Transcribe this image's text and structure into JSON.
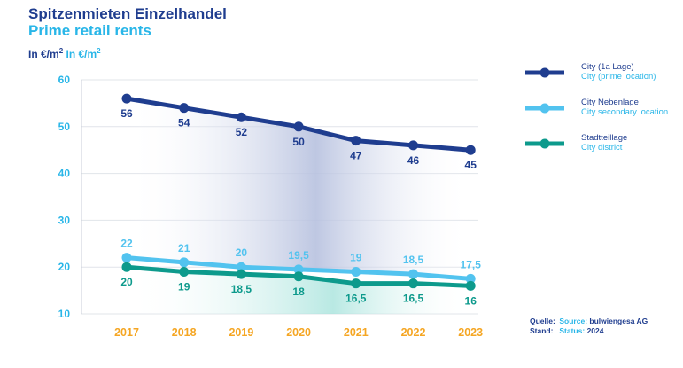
{
  "header": {
    "title_de": "Spitzenmieten Einzelhandel",
    "title_en": "Prime retail rents",
    "unit_de": "In €/m",
    "unit_en": "In €/m",
    "unit_sup": "2"
  },
  "chart_data": {
    "type": "line",
    "x": [
      "2017",
      "2018",
      "2019",
      "2020",
      "2021",
      "2022",
      "2023"
    ],
    "ylim": [
      10,
      60
    ],
    "yticks": [
      10,
      20,
      30,
      40,
      50,
      60
    ],
    "grid": true,
    "legend_position": "right",
    "series": [
      {
        "name": "City (1a Lage)",
        "name_en": "City (prime location)",
        "color": "#1f3d8f",
        "values": [
          56,
          54,
          52,
          50,
          47,
          46,
          45
        ],
        "labels": [
          "56",
          "54",
          "52",
          "50",
          "47",
          "46",
          "45"
        ],
        "label_pos": "below"
      },
      {
        "name": "City Nebenlage",
        "name_en": "City secondary location",
        "color": "#52c3ef",
        "values": [
          22,
          21,
          20,
          19.5,
          19,
          18.5,
          17.5
        ],
        "labels": [
          "22",
          "21",
          "20",
          "19,5",
          "19",
          "18,5",
          "17,5"
        ],
        "label_pos": "above"
      },
      {
        "name": "Stadtteillage",
        "name_en": "City district",
        "color": "#0d9a8c",
        "values": [
          20,
          19,
          18.5,
          18,
          16.5,
          16.5,
          16
        ],
        "labels": [
          "20",
          "19",
          "18,5",
          "18",
          "16,5",
          "16,5",
          "16"
        ],
        "label_pos": "below"
      }
    ]
  },
  "source": {
    "quelle_key": "Quelle:",
    "quelle_label": "Source:",
    "quelle_value": "bulwiengesa AG",
    "stand_key": "Stand:",
    "stand_label": "Status:",
    "stand_value": "2024"
  },
  "colors": {
    "x_tick": "#f5a623",
    "y_tick": "#29b6e8",
    "grid": "#e1e4ea"
  }
}
